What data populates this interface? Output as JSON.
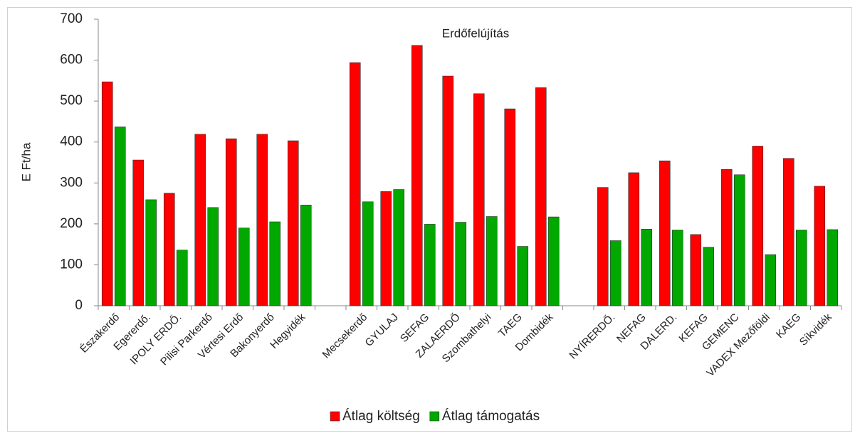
{
  "chart_data": {
    "type": "bar",
    "title": "Erdőfelújítás",
    "y_label": "E Ft/ha",
    "categories": [
      "Északerdő",
      "Egererdő.",
      "IPOLY ERDŐ.",
      "Pilisi Parkerdő",
      "Vértesi Erdő",
      "Bakonyerdő",
      "Hegyidék",
      null,
      "Mecsekerdő",
      "GYULAJ",
      "SEFAG",
      "ZALAERDŐ",
      "Szombathelyi",
      "TAEG",
      "Dombidék",
      null,
      "NYÍRERDŐ.",
      "NEFAG",
      "DALERD.",
      "KEFAG",
      "GEMENC",
      "VADEX Mezőföldi",
      "KAEG",
      "Síkvidék"
    ],
    "series": [
      {
        "name": "Átlag költség",
        "color": "#ff0000",
        "values": [
          547,
          356,
          275,
          419,
          408,
          419,
          403,
          null,
          594,
          279,
          636,
          561,
          518,
          481,
          533,
          null,
          289,
          325,
          354,
          174,
          333,
          390,
          360,
          292
        ]
      },
      {
        "name": "Átlag támogatás",
        "color": "#00a800",
        "values": [
          437,
          259,
          136,
          240,
          190,
          205,
          246,
          null,
          254,
          284,
          199,
          204,
          218,
          145,
          217,
          null,
          159,
          187,
          185,
          143,
          320,
          125,
          185,
          186
        ]
      }
    ],
    "ylim": [
      0,
      700
    ],
    "yticks": [
      0,
      100,
      200,
      300,
      400,
      500,
      600,
      700
    ],
    "grid": false,
    "legend": "bottom"
  }
}
